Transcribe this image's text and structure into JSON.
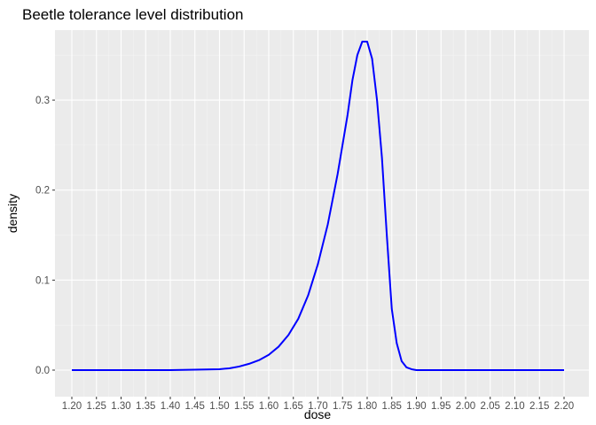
{
  "chart_data": {
    "type": "line",
    "title": "Beetle tolerance level distribution",
    "xlabel": "dose",
    "ylabel": "density",
    "xlim": [
      1.2,
      2.2
    ],
    "ylim": [
      0.0,
      0.365
    ],
    "x_ticks": [
      "1.20",
      "1.25",
      "1.30",
      "1.35",
      "1.40",
      "1.45",
      "1.50",
      "1.55",
      "1.60",
      "1.65",
      "1.70",
      "1.75",
      "1.80",
      "1.85",
      "1.90",
      "1.95",
      "2.00",
      "2.05",
      "2.10",
      "2.15",
      "2.20"
    ],
    "y_ticks": [
      "0.0",
      "0.1",
      "0.2",
      "0.3"
    ],
    "grid": true,
    "legend": "none",
    "colors": {
      "line": "#0000ff",
      "panel_background": "#ebebeb",
      "grid_major": "#ffffff",
      "grid_minor": "#f5f5f5"
    },
    "series": [
      {
        "x": [
          1.2,
          1.25,
          1.3,
          1.35,
          1.4,
          1.45,
          1.5,
          1.52,
          1.54,
          1.56,
          1.58,
          1.6,
          1.62,
          1.64,
          1.66,
          1.68,
          1.7,
          1.72,
          1.74,
          1.76,
          1.77,
          1.78,
          1.79,
          1.8,
          1.81,
          1.82,
          1.83,
          1.84,
          1.85,
          1.86,
          1.87,
          1.88,
          1.89,
          1.9,
          1.92,
          1.95,
          2.0,
          2.05,
          2.1,
          2.15,
          2.2
        ],
        "y": [
          0.0,
          0.0,
          0.0,
          0.0,
          0.0,
          0.0005,
          0.001,
          0.002,
          0.004,
          0.007,
          0.011,
          0.017,
          0.026,
          0.039,
          0.057,
          0.083,
          0.118,
          0.162,
          0.218,
          0.283,
          0.322,
          0.35,
          0.365,
          0.365,
          0.346,
          0.3,
          0.236,
          0.149,
          0.068,
          0.03,
          0.01,
          0.003,
          0.001,
          0.0,
          0.0,
          0.0,
          0.0,
          0.0,
          0.0,
          0.0,
          0.0
        ]
      }
    ]
  }
}
